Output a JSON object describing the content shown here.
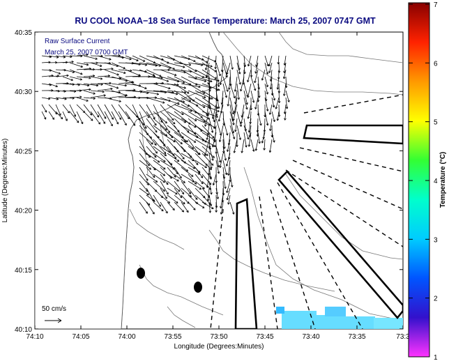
{
  "map": {
    "title": "RU COOL  NOAA−18  Sea Surface Temperature:  March 25, 2007 0747 GMT",
    "legend_line1": "Raw Surface Current",
    "legend_line2": "March 25, 2007 0700 GMT",
    "scale_label": "50 cm/s",
    "xlabel": "Longitude (Degrees:Minutes)",
    "ylabel": "Latitude (Degrees:Minutes)",
    "x_ticks": [
      "74:10",
      "74:05",
      "74:00",
      "73:55",
      "73:50",
      "73:45",
      "73:40",
      "73:35",
      "73:3"
    ],
    "y_ticks": [
      "40:35",
      "40:30",
      "40:25",
      "40:20",
      "40:15",
      "40:10"
    ]
  },
  "colorbar": {
    "label": "Temperature (°C)",
    "min": 1,
    "max": 7,
    "ticks": [
      "1",
      "2",
      "3",
      "4",
      "5",
      "6",
      "7"
    ],
    "stops": [
      "#ff33ff",
      "#3311cc",
      "#0055ff",
      "#00ccff",
      "#00ffcc",
      "#33ff33",
      "#ffff00",
      "#ff9900",
      "#ff2200",
      "#880000"
    ]
  },
  "colors": {
    "title": "#0a0a80",
    "legend_text": "#0a0a80",
    "coast": "#777777",
    "sst_patch": "#66ddff"
  }
}
